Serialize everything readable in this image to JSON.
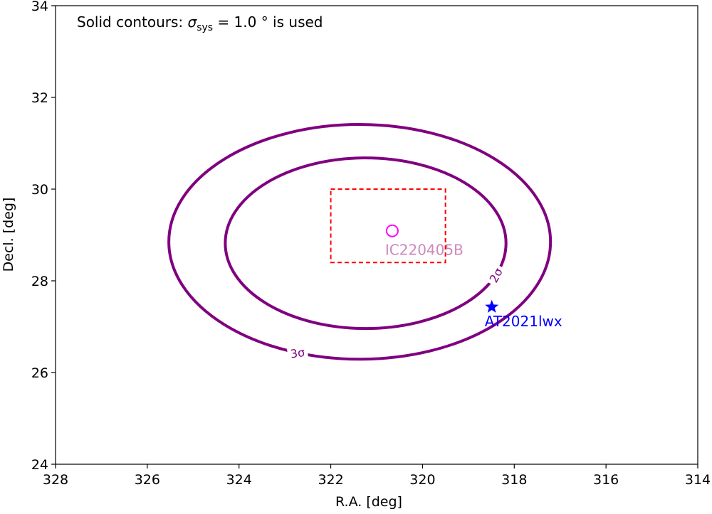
{
  "chart_data": {
    "type": "scatter",
    "annotation": {
      "prefix": "Solid contours: ",
      "symbol": "σ",
      "subscript": "sys",
      "suffix": " = 1.0 °  is used"
    },
    "x_label": "R.A. [deg]",
    "y_label": "Decl. [deg]",
    "xlim": [
      328,
      314
    ],
    "ylim": [
      24,
      34
    ],
    "xticks": [
      328,
      326,
      324,
      322,
      320,
      318,
      316,
      314
    ],
    "yticks": [
      24,
      26,
      28,
      30,
      32,
      34
    ],
    "contours": [
      {
        "label": "2σ",
        "color": "#800080",
        "ra": 321.24,
        "dec": 28.82,
        "ra_radius": 3.06,
        "dec_radius": 1.86
      },
      {
        "label": "3σ",
        "color": "#800080",
        "ra": 321.37,
        "dec": 28.85,
        "ra_radius": 4.16,
        "dec_radius": 2.56
      }
    ],
    "region": {
      "ra": [
        322,
        319.5
      ],
      "dec": [
        28.4,
        30.0
      ],
      "color": "#ff0000"
    },
    "points": [
      {
        "name": "IC220405B",
        "ra": 320.66,
        "dec": 29.09,
        "marker": "circle",
        "color": "#ff00ff",
        "label_color": "#cc88bb"
      },
      {
        "name": "AT2021lwx",
        "ra": 318.49,
        "dec": 27.43,
        "marker": "star",
        "color": "#0000ff",
        "label_color": "#0000ff"
      }
    ]
  }
}
